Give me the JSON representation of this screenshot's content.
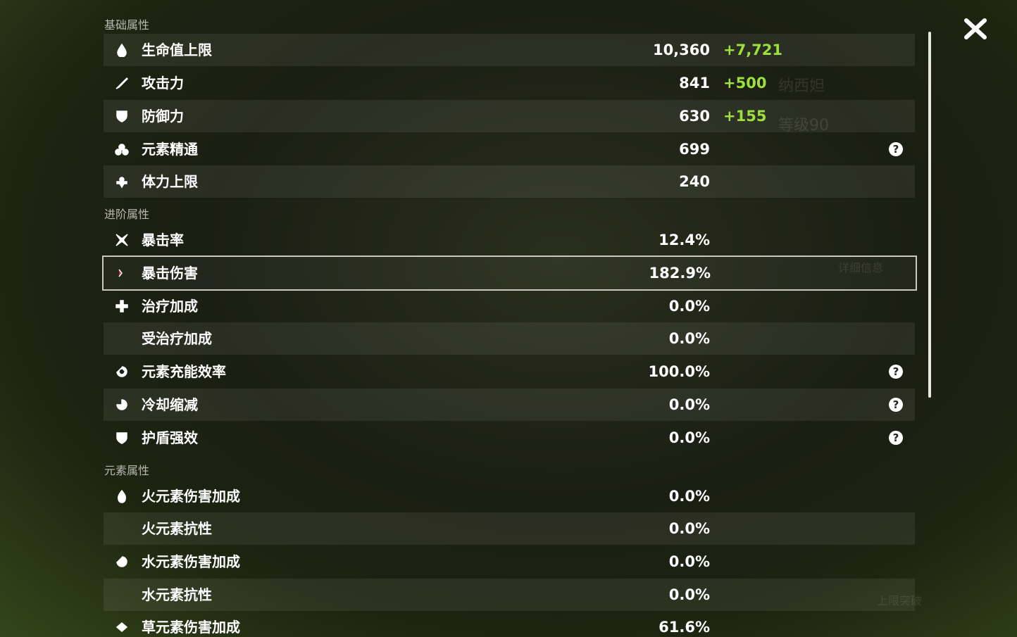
{
  "sections": [
    {
      "title": "基础属性",
      "rows": [
        {
          "label": "生命值上限",
          "value": "10,360",
          "bonus": "+7,721"
        },
        {
          "label": "攻击力",
          "value": "841",
          "bonus": "+500"
        },
        {
          "label": "防御力",
          "value": "630",
          "bonus": "+155"
        },
        {
          "label": "元素精通",
          "value": "699",
          "help": true
        },
        {
          "label": "体力上限",
          "value": "240"
        }
      ]
    },
    {
      "title": "进阶属性",
      "rows": [
        {
          "label": "暴击率",
          "value": "12.4%"
        },
        {
          "label": "暴击伤害",
          "value": "182.9%",
          "selected": true
        },
        {
          "label": "治疗加成",
          "value": "0.0%"
        },
        {
          "label": "受治疗加成",
          "value": "0.0%"
        },
        {
          "label": "元素充能效率",
          "value": "100.0%",
          "help": true
        },
        {
          "label": "冷却缩减",
          "value": "0.0%",
          "help": true
        },
        {
          "label": "护盾强效",
          "value": "0.0%",
          "help": true
        }
      ]
    },
    {
      "title": "元素属性",
      "rows": [
        {
          "label": "火元素伤害加成",
          "value": "0.0%"
        },
        {
          "label": "火元素抗性",
          "value": "0.0%"
        },
        {
          "label": "水元素伤害加成",
          "value": "0.0%"
        },
        {
          "label": "水元素抗性",
          "value": "0.0%"
        },
        {
          "label": "草元素伤害加成",
          "value": "61.6%"
        }
      ]
    }
  ],
  "help_icon": "?",
  "background": {
    "name": "纳西妲",
    "level": "等级90",
    "details": "详细信息",
    "ascend": "上限突破"
  }
}
